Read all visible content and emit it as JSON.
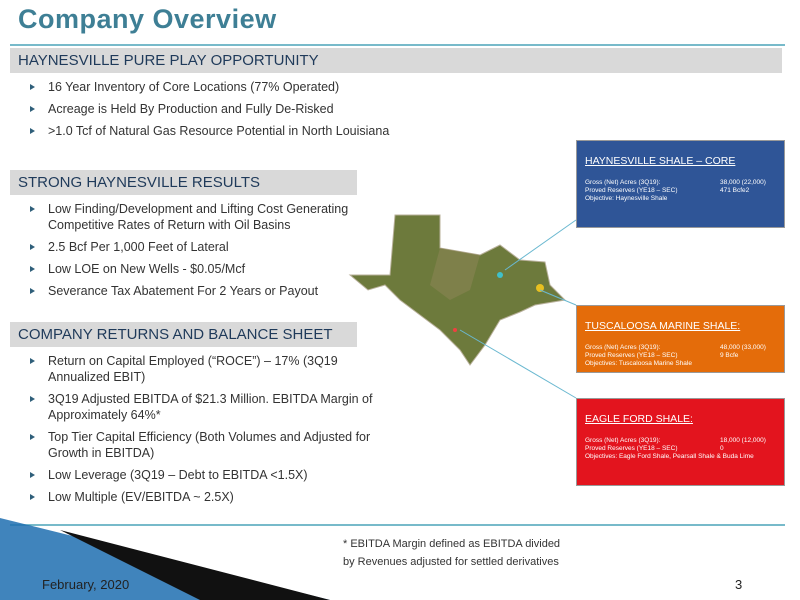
{
  "title": "Company Overview",
  "sections": [
    {
      "heading": "HAYNESVILLE PURE PLAY OPPORTUNITY",
      "bullets": [
        "16 Year Inventory of Core Locations (77% Operated)",
        "Acreage is Held By Production and Fully De-Risked",
        ">1.0 Tcf of Natural Gas Resource Potential in North Louisiana"
      ]
    },
    {
      "heading": "STRONG HAYNESVILLE RESULTS",
      "bullets": [
        "Low Finding/Development and Lifting Cost Generating Competitive Rates of Return with Oil Basins",
        "2.5 Bcf Per 1,000 Feet of Lateral",
        "Low LOE on New Wells - $0.05/Mcf",
        "Severance Tax Abatement For 2 Years or Payout"
      ]
    },
    {
      "heading": "COMPANY RETURNS AND BALANCE SHEET",
      "bullets": [
        "Return on Capital Employed (“ROCE”) – 17% (3Q19 Annualized EBIT)",
        "3Q19 Adjusted EBITDA of $21.3 Million. EBITDA Margin of Approximately 64%*",
        "Top Tier Capital Efficiency (Both Volumes and Adjusted for Growth in EBITDA)",
        "Low Leverage (3Q19 – Debt to EBITDA <1.5X)",
        "Low Multiple (EV/EBITDA  ~ 2.5X)"
      ]
    }
  ],
  "callouts": [
    {
      "title": "HAYNESVILLE SHALE – CORE",
      "rows": [
        [
          "Gross (Net) Acres (3Q19):",
          "38,000 (22,000)"
        ],
        [
          "Proved Reserves (YE18 – SEC)",
          "471 Bcfe2"
        ]
      ],
      "objective": "Objective: Haynesville Shale"
    },
    {
      "title": "TUSCALOOSA MARINE SHALE:",
      "rows": [
        [
          "Gross (Net) Acres (3Q19):",
          "48,000 (33,000)"
        ],
        [
          "Proved Reserves (YE18 – SEC)",
          "9 Bcfe"
        ]
      ],
      "objective": "Objectives: Tuscaloosa Marine Shale"
    },
    {
      "title": "EAGLE FORD SHALE:",
      "rows": [
        [
          "Gross (Net) Acres (3Q19):",
          "18,000 (12,000)"
        ],
        [
          "Proved Reserves (YE18 – SEC)",
          "0"
        ]
      ],
      "objective": "Objectives: Eagle Ford Shale, Pearsall Shale & Buda Lime"
    }
  ],
  "footnote": [
    "* EBITDA Margin defined as EBITDA divided",
    "by Revenues adjusted for settled derivatives"
  ],
  "footer": {
    "date": "February, 2020",
    "page": "3"
  }
}
